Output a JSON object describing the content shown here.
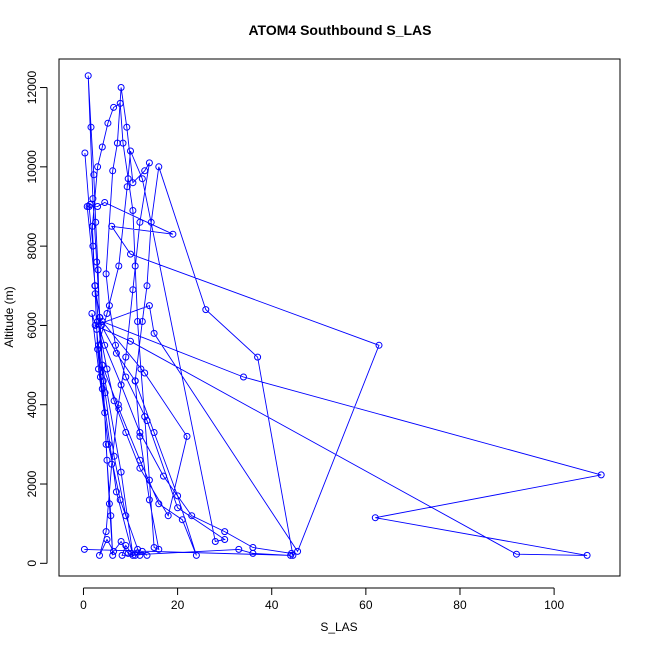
{
  "chart_data": {
    "type": "line",
    "title": "ATOM4 Southbound S_LAS",
    "xlabel": "S_LAS",
    "ylabel": "Altitude (m)",
    "xlim": [
      -5.2,
      114
    ],
    "ylim": [
      -320,
      12720
    ],
    "xticks": [
      0,
      20,
      40,
      60,
      80,
      100
    ],
    "yticks": [
      0,
      2000,
      4000,
      6000,
      8000,
      10000,
      12000
    ],
    "grid": false,
    "legend": "none",
    "series": [
      {
        "color": "#0000ff",
        "marker": "open-circle",
        "points": [
          [
            0.3,
            10350
          ],
          [
            1.2,
            9000
          ],
          [
            2.0,
            8000
          ],
          [
            2.5,
            6800
          ],
          [
            3.0,
            5400
          ],
          [
            3.6,
            4700
          ],
          [
            4.5,
            3800
          ],
          [
            5.0,
            2600
          ],
          [
            5.8,
            1200
          ],
          [
            6.2,
            200
          ],
          [
            5.5,
            1500
          ],
          [
            4.8,
            3000
          ],
          [
            4.2,
            4600
          ],
          [
            3.5,
            6200
          ],
          [
            2.8,
            7600
          ],
          [
            2.0,
            9200
          ],
          [
            1.0,
            12300
          ],
          [
            1.6,
            11000
          ],
          [
            2.2,
            9800
          ],
          [
            2.6,
            8600
          ],
          [
            3.1,
            7400
          ],
          [
            3.4,
            6200
          ],
          [
            4.0,
            5000
          ],
          [
            7.5,
            3900
          ],
          [
            12.0,
            2600
          ],
          [
            16.0,
            1500
          ],
          [
            21.0,
            1100
          ],
          [
            24.0,
            200
          ],
          [
            20.0,
            1700
          ],
          [
            15.0,
            3300
          ],
          [
            11.0,
            4600
          ],
          [
            7.0,
            5300
          ],
          [
            3.8,
            6000
          ],
          [
            2.4,
            7000
          ],
          [
            1.9,
            8500
          ],
          [
            3.0,
            10000
          ],
          [
            4.0,
            10500
          ],
          [
            5.2,
            11100
          ],
          [
            6.4,
            11500
          ],
          [
            7.8,
            11600
          ],
          [
            8.4,
            10600
          ],
          [
            9.5,
            9700
          ],
          [
            10.5,
            8900
          ],
          [
            11.0,
            7500
          ],
          [
            11.5,
            6100
          ],
          [
            12.2,
            4900
          ],
          [
            13.0,
            3700
          ],
          [
            14.0,
            2100
          ],
          [
            15.0,
            400
          ],
          [
            16.0,
            350
          ],
          [
            14.0,
            1600
          ],
          [
            12.0,
            3200
          ],
          [
            11.0,
            4600
          ],
          [
            12.5,
            6100
          ],
          [
            13.5,
            7000
          ],
          [
            14.4,
            8600
          ],
          [
            16.0,
            10000
          ],
          [
            26.0,
            6400
          ],
          [
            37.0,
            5200
          ],
          [
            44.5,
            200
          ],
          [
            44.2,
            250
          ],
          [
            36.0,
            400
          ],
          [
            30.0,
            800
          ],
          [
            23.0,
            1200
          ],
          [
            17.0,
            2200
          ],
          [
            12.0,
            3300
          ],
          [
            8.0,
            4500
          ],
          [
            4.5,
            5500
          ],
          [
            3.0,
            6100
          ],
          [
            5.0,
            4900
          ],
          [
            6.5,
            4100
          ],
          [
            9.0,
            3300
          ],
          [
            12.0,
            2400
          ],
          [
            18.0,
            1200
          ],
          [
            22.0,
            3200
          ],
          [
            13.0,
            4800
          ],
          [
            4.0,
            6100
          ],
          [
            34.0,
            4700
          ],
          [
            110.0,
            2230
          ],
          [
            62.0,
            1150
          ],
          [
            107.0,
            200
          ],
          [
            92.0,
            230
          ],
          [
            10.0,
            5600
          ],
          [
            2.5,
            6000
          ],
          [
            14.0,
            6500
          ],
          [
            15.0,
            5800
          ],
          [
            45.5,
            300
          ],
          [
            62.8,
            5500
          ],
          [
            10.0,
            7800
          ],
          [
            6.0,
            8500
          ],
          [
            19.0,
            8300
          ],
          [
            4.5,
            9100
          ],
          [
            3.0,
            9000
          ],
          [
            1.4,
            9050
          ],
          [
            0.8,
            9000
          ],
          [
            2.5,
            7000
          ],
          [
            4.0,
            5000
          ],
          [
            8.0,
            2300
          ],
          [
            10.5,
            200
          ],
          [
            7.0,
            1800
          ],
          [
            4.0,
            4400
          ],
          [
            2.8,
            5900
          ],
          [
            1.8,
            6300
          ],
          [
            3.2,
            4900
          ],
          [
            5.3,
            3000
          ],
          [
            7.8,
            1600
          ],
          [
            12.0,
            200
          ],
          [
            9.0,
            1200
          ],
          [
            6.5,
            2700
          ],
          [
            4.6,
            4300
          ],
          [
            3.2,
            5500
          ],
          [
            5.0,
            6300
          ],
          [
            7.5,
            7500
          ],
          [
            9.3,
            9500
          ],
          [
            10.0,
            10400
          ],
          [
            12.5,
            9700
          ],
          [
            28.0,
            550
          ],
          [
            30.0,
            600
          ],
          [
            20.0,
            1400
          ],
          [
            13.5,
            3600
          ],
          [
            9.0,
            4700
          ],
          [
            6.8,
            5500
          ],
          [
            5.5,
            6500
          ],
          [
            4.8,
            7300
          ],
          [
            6.2,
            9900
          ],
          [
            7.2,
            10600
          ],
          [
            8.0,
            12000
          ],
          [
            9.2,
            11000
          ],
          [
            10.5,
            9600
          ],
          [
            13.0,
            9900
          ],
          [
            14.0,
            10100
          ],
          [
            12.0,
            8600
          ],
          [
            10.5,
            6900
          ],
          [
            9.0,
            5200
          ],
          [
            7.4,
            4000
          ],
          [
            6.0,
            2500
          ],
          [
            4.8,
            800
          ],
          [
            3.4,
            200
          ],
          [
            5.0,
            600
          ],
          [
            6.4,
            300
          ],
          [
            8.0,
            550
          ],
          [
            9.5,
            250
          ],
          [
            11.0,
            200
          ],
          [
            12.5,
            300
          ],
          [
            13.5,
            200
          ],
          [
            11.5,
            350
          ],
          [
            10.2,
            250
          ],
          [
            9.0,
            450
          ],
          [
            8.2,
            200
          ],
          [
            33.0,
            350
          ],
          [
            36.0,
            250
          ],
          [
            44.0,
            200
          ],
          [
            0.2,
            350
          ]
        ]
      }
    ]
  }
}
